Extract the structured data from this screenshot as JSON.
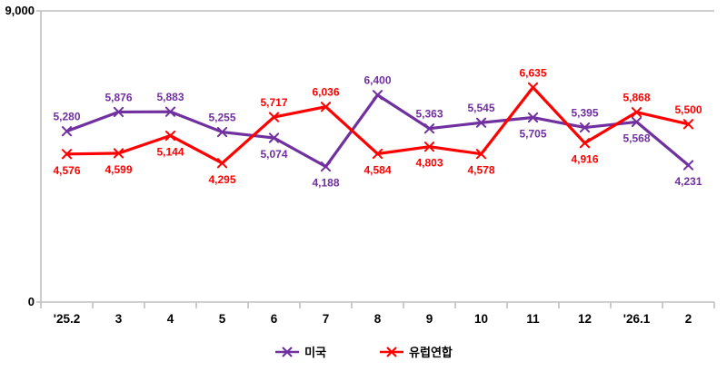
{
  "chart_data": {
    "type": "line",
    "categories": [
      "'25.2",
      "3",
      "4",
      "5",
      "6",
      "7",
      "8",
      "9",
      "10",
      "11",
      "12",
      "'26.1",
      "2"
    ],
    "series": [
      {
        "name": "미국",
        "color": "#7030A0",
        "values": [
          5280,
          5876,
          5883,
          5255,
          5074,
          4188,
          6400,
          5363,
          5545,
          5705,
          5395,
          5568,
          4231
        ]
      },
      {
        "name": "유럽연합",
        "color": "#FF0000",
        "values": [
          4576,
          4599,
          5144,
          4295,
          5717,
          6036,
          4584,
          4803,
          4578,
          6635,
          4916,
          5868,
          5500
        ]
      }
    ],
    "title": "",
    "xlabel": "",
    "ylabel": "",
    "ylim": [
      0,
      9000
    ],
    "ytick_labels": [
      "0",
      "9,000"
    ],
    "grid": "top-border-only",
    "legend_position": "bottom-center",
    "marker": "x",
    "data_labels": true,
    "axis_color": "#BFBFBF",
    "tick_label_color": "#000000"
  }
}
